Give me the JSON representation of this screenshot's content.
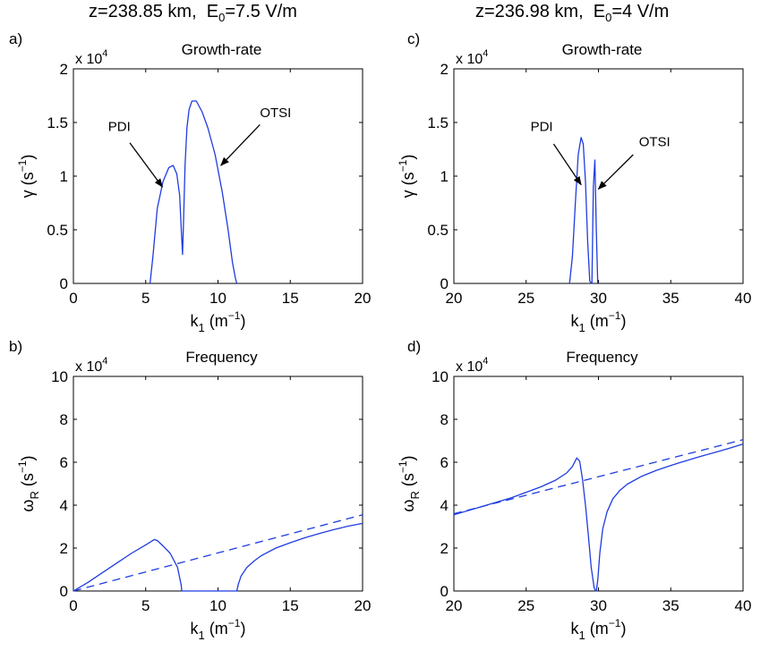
{
  "columns": {
    "left": {
      "z_label": "z=238.85 km,",
      "e_label": "E",
      "e_sub": "0",
      "e_value": "=7.5 V/m"
    },
    "right": {
      "z_label": "z=236.98 km,",
      "e_label": "E",
      "e_sub": "0",
      "e_value": "=4 V/m"
    }
  },
  "series_color": "#1f3ce0",
  "chart_data": [
    {
      "id": "a",
      "panel_label": "a)",
      "type": "line",
      "title": "Growth-rate",
      "xlabel": {
        "main": "k",
        "sub": "1",
        "unit": "(m",
        "exp": "−1",
        "close": ")"
      },
      "ylabel": {
        "main": "γ",
        "sub": "",
        "unit": "(s",
        "exp": "−1",
        "close": ")"
      },
      "multiplier": {
        "text": "x 10",
        "exp": "4"
      },
      "xlim": [
        0,
        20
      ],
      "ylim": [
        0,
        2
      ],
      "xticks": [
        0,
        5,
        10,
        15,
        20
      ],
      "yticks": [
        0,
        0.5,
        1,
        1.5,
        2
      ],
      "series": [
        {
          "style": "solid",
          "x": [
            5.3,
            5.5,
            5.8,
            6.2,
            6.6,
            6.9,
            7.15,
            7.35,
            7.48,
            7.55,
            7.62,
            7.72,
            7.85,
            8.0,
            8.2,
            8.5,
            8.9,
            9.3,
            9.8,
            10.3,
            10.7,
            11.0,
            11.2,
            11.3
          ],
          "y": [
            0.0,
            0.25,
            0.7,
            0.95,
            1.08,
            1.1,
            1.02,
            0.82,
            0.45,
            0.27,
            0.6,
            1.1,
            1.45,
            1.62,
            1.7,
            1.7,
            1.6,
            1.45,
            1.2,
            0.85,
            0.5,
            0.2,
            0.05,
            0.0
          ]
        }
      ],
      "annotations": [
        {
          "text": "PDI",
          "at": [
            2.4,
            1.42
          ],
          "arrow_from": [
            3.9,
            1.31
          ],
          "arrow_to": [
            6.15,
            0.9
          ]
        },
        {
          "text": "OTSI",
          "at": [
            12.9,
            1.55
          ],
          "arrow_from": [
            12.9,
            1.48
          ],
          "arrow_to": [
            10.2,
            1.1
          ]
        }
      ]
    },
    {
      "id": "c",
      "panel_label": "c)",
      "type": "line",
      "title": "Growth-rate",
      "xlabel": {
        "main": "k",
        "sub": "1",
        "unit": "(m",
        "exp": "−1",
        "close": ")"
      },
      "ylabel": {
        "main": "γ",
        "sub": "",
        "unit": "(s",
        "exp": "−1",
        "close": ")"
      },
      "multiplier": {
        "text": "x 10",
        "exp": "4"
      },
      "xlim": [
        20,
        40
      ],
      "ylim": [
        0,
        2
      ],
      "xticks": [
        20,
        25,
        30,
        35,
        40
      ],
      "yticks": [
        0,
        0.5,
        1,
        1.5,
        2
      ],
      "series": [
        {
          "style": "solid",
          "x": [
            28.0,
            28.2,
            28.4,
            28.6,
            28.8,
            28.95,
            29.1,
            29.25,
            29.4,
            29.55,
            29.65,
            29.75,
            29.85,
            29.95
          ],
          "y": [
            0.0,
            0.25,
            0.75,
            1.2,
            1.36,
            1.3,
            0.95,
            0.4,
            0.02,
            0.0,
            0.9,
            1.15,
            0.5,
            0.0
          ]
        }
      ],
      "annotations": [
        {
          "text": "PDI",
          "at": [
            25.3,
            1.42
          ],
          "arrow_from": [
            26.9,
            1.3
          ],
          "arrow_to": [
            28.8,
            0.92
          ]
        },
        {
          "text": "OTSI",
          "at": [
            32.8,
            1.28
          ],
          "arrow_from": [
            32.4,
            1.2
          ],
          "arrow_to": [
            30.0,
            0.88
          ]
        }
      ]
    },
    {
      "id": "b",
      "panel_label": "b)",
      "type": "line",
      "title": "Frequency",
      "xlabel": {
        "main": "k",
        "sub": "1",
        "unit": "(m",
        "exp": "−1",
        "close": ")"
      },
      "ylabel": {
        "main": "ω",
        "sub": "R",
        "unit": "(s",
        "exp": "−1",
        "close": ")"
      },
      "multiplier": {
        "text": "x 10",
        "exp": "4"
      },
      "xlim": [
        0,
        20
      ],
      "ylim": [
        0,
        10
      ],
      "xticks": [
        0,
        5,
        10,
        15,
        20
      ],
      "yticks": [
        0,
        2,
        4,
        6,
        8,
        10
      ],
      "series": [
        {
          "style": "solid",
          "x": [
            0,
            1,
            2,
            3,
            4,
            5,
            5.6,
            5.8,
            6.2,
            6.7,
            7.2,
            7.45,
            7.5,
            8,
            9,
            10,
            11,
            11.3,
            11.4,
            11.6,
            12,
            12.5,
            13,
            14,
            15,
            16,
            17,
            18,
            19,
            20
          ],
          "y": [
            0,
            0.4,
            0.85,
            1.3,
            1.75,
            2.15,
            2.4,
            2.35,
            2.1,
            1.75,
            1.1,
            0.3,
            0,
            0,
            0,
            0,
            0,
            0,
            0.3,
            0.7,
            1.1,
            1.4,
            1.65,
            2.0,
            2.25,
            2.48,
            2.68,
            2.86,
            3.02,
            3.15
          ]
        },
        {
          "style": "dashed",
          "x": [
            0,
            20
          ],
          "y": [
            0,
            3.55
          ]
        }
      ]
    },
    {
      "id": "d",
      "panel_label": "d)",
      "type": "line",
      "title": "Frequency",
      "xlabel": {
        "main": "k",
        "sub": "1",
        "unit": "(m",
        "exp": "−1",
        "close": ")"
      },
      "ylabel": {
        "main": "ω",
        "sub": "R",
        "unit": "(s",
        "exp": "−1",
        "close": ")"
      },
      "multiplier": {
        "text": "x 10",
        "exp": "4"
      },
      "xlim": [
        20,
        40
      ],
      "ylim": [
        0,
        10
      ],
      "xticks": [
        20,
        25,
        30,
        35,
        40
      ],
      "yticks": [
        0,
        2,
        4,
        6,
        8,
        10
      ],
      "series": [
        {
          "style": "solid",
          "x": [
            20,
            22,
            24,
            26,
            27,
            27.8,
            28.2,
            28.5,
            28.7,
            28.9,
            29.1,
            29.3,
            29.5,
            29.7,
            29.8,
            29.85,
            29.95,
            30.1,
            30.3,
            30.6,
            31,
            31.5,
            32,
            33,
            34,
            35,
            36,
            37,
            38,
            39,
            40
          ],
          "y": [
            3.55,
            3.95,
            4.35,
            4.85,
            5.15,
            5.5,
            5.8,
            6.2,
            6.05,
            5.2,
            4.0,
            2.6,
            1.1,
            0.15,
            0,
            0,
            0.5,
            1.8,
            2.9,
            3.7,
            4.3,
            4.7,
            4.98,
            5.35,
            5.62,
            5.85,
            6.06,
            6.26,
            6.45,
            6.64,
            6.85
          ]
        },
        {
          "style": "dashed",
          "x": [
            20,
            40
          ],
          "y": [
            3.6,
            7.05
          ]
        }
      ]
    }
  ]
}
